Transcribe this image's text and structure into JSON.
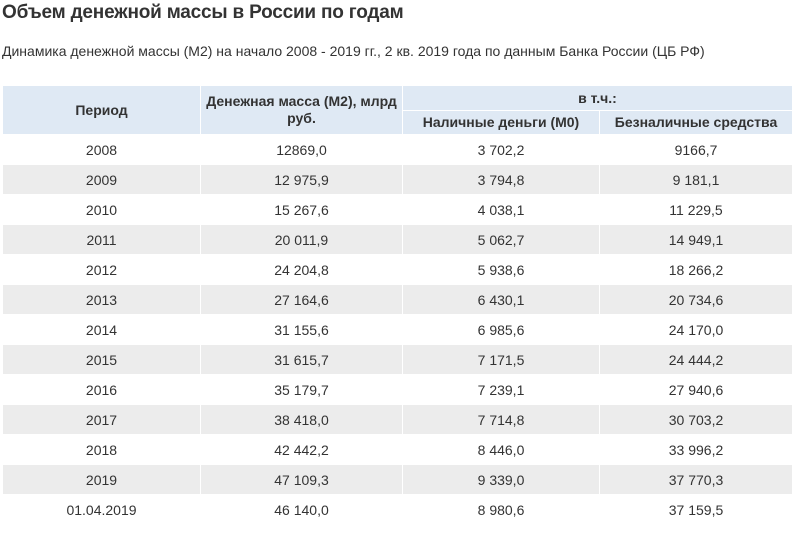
{
  "title": "Объем денежной массы в России по годам",
  "subtitle": "Динамика денежной массы (М2) на начало 2008 - 2019 гг., 2 кв. 2019 года по данным Банка России (ЦБ РФ)",
  "table": {
    "headers": {
      "period": "Период",
      "m2": "Денежная масса (М2), млрд руб.",
      "incl": "в т.ч.:",
      "cash": "Наличные деньги (М0)",
      "noncash": "Безналичные средства"
    },
    "rows": [
      {
        "period": "2008",
        "m2": "12869,0",
        "cash": "3 702,2",
        "noncash": "9166,7"
      },
      {
        "period": "2009",
        "m2": "12 975,9",
        "cash": "3 794,8",
        "noncash": "9 181,1"
      },
      {
        "period": "2010",
        "m2": "15 267,6",
        "cash": "4 038,1",
        "noncash": "11 229,5"
      },
      {
        "period": "2011",
        "m2": "20 011,9",
        "cash": "5 062,7",
        "noncash": "14 949,1"
      },
      {
        "period": "2012",
        "m2": "24 204,8",
        "cash": "5 938,6",
        "noncash": "18 266,2"
      },
      {
        "period": "2013",
        "m2": "27 164,6",
        "cash": "6 430,1",
        "noncash": "20 734,6"
      },
      {
        "period": "2014",
        "m2": "31 155,6",
        "cash": "6 985,6",
        "noncash": "24 170,0"
      },
      {
        "period": "2015",
        "m2": "31 615,7",
        "cash": "7 171,5",
        "noncash": "24 444,2"
      },
      {
        "period": "2016",
        "m2": "35 179,7",
        "cash": "7 239,1",
        "noncash": "27 940,6"
      },
      {
        "period": "2017",
        "m2": "38 418,0",
        "cash": "7 714,8",
        "noncash": "30 703,2"
      },
      {
        "period": "2018",
        "m2": "42 442,2",
        "cash": "8 446,0",
        "noncash": "33 996,2"
      },
      {
        "period": "2019",
        "m2": "47 109,3",
        "cash": "9 339,0",
        "noncash": "37 770,3"
      },
      {
        "period": "01.04.2019",
        "m2": "46 140,0",
        "cash": "8 980,6",
        "noncash": "37 159,5"
      }
    ]
  },
  "colors": {
    "header_bg": "#dfe9f4",
    "zebra_bg": "#ececec",
    "text": "#333333"
  }
}
